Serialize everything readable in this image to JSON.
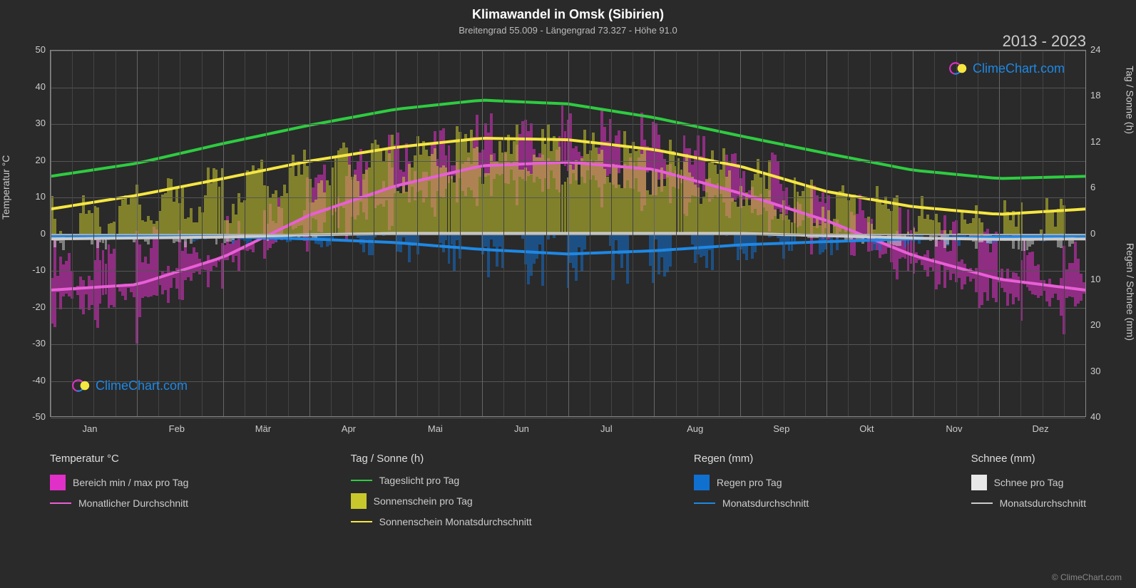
{
  "title": "Klimawandel in Omsk (Sibirien)",
  "subtitle": "Breitengrad 55.009 - Längengrad 73.327 - Höhe 91.0",
  "year_range": "2013 - 2023",
  "watermark_text": "ClimeChart.com",
  "watermark_color": "#1e88e5",
  "copyright": "© ClimeChart.com",
  "background_color": "#2a2a2a",
  "grid_color": "#555555",
  "border_color": "#888888",
  "y_left": {
    "label": "Temperatur °C",
    "min": -50,
    "max": 50,
    "step": 10,
    "ticks": [
      50,
      40,
      30,
      20,
      10,
      0,
      -10,
      -20,
      -30,
      -40,
      -50
    ]
  },
  "y_right_top": {
    "label": "Tag / Sonne (h)",
    "min": 0,
    "max": 24,
    "step": 6,
    "ticks": [
      24,
      18,
      12,
      6,
      0
    ]
  },
  "y_right_bottom": {
    "label": "Regen / Schnee (mm)",
    "min": 0,
    "max": 40,
    "step": 10,
    "ticks": [
      0,
      10,
      20,
      30,
      40
    ]
  },
  "x_axis": {
    "months": [
      "Jan",
      "Feb",
      "Mär",
      "Apr",
      "Mai",
      "Jun",
      "Jul",
      "Aug",
      "Sep",
      "Okt",
      "Nov",
      "Dez"
    ]
  },
  "series_lines": {
    "daylight": {
      "color": "#2ecc40",
      "width": 2,
      "values_h": [
        7.5,
        9.2,
        11.8,
        14.2,
        16.3,
        17.5,
        17.0,
        15.2,
        12.8,
        10.5,
        8.3,
        7.2
      ]
    },
    "sunshine_avg": {
      "color": "#f5e642",
      "width": 2,
      "values_h": [
        3.2,
        5.0,
        7.2,
        9.5,
        11.3,
        12.5,
        12.3,
        11.0,
        8.8,
        5.5,
        3.5,
        2.5
      ]
    },
    "temp_avg": {
      "color": "#e85fd6",
      "width": 2,
      "values_c": [
        -15.5,
        -14.0,
        -6.5,
        5.0,
        13.0,
        18.5,
        19.5,
        17.5,
        11.0,
        3.5,
        -6.0,
        -12.5
      ]
    },
    "rain_avg": {
      "color": "#1e88e5",
      "width": 2,
      "values_mm": [
        0.5,
        0.5,
        0.7,
        1.2,
        2.0,
        3.5,
        4.5,
        3.8,
        2.5,
        1.8,
        1.2,
        0.8
      ]
    },
    "snow_avg": {
      "color": "#cccccc",
      "width": 2,
      "values_mm": [
        1.2,
        1.0,
        0.8,
        0.3,
        0,
        0,
        0,
        0,
        0,
        0.5,
        1.0,
        1.3
      ]
    }
  },
  "daily_bars": {
    "temp_range": {
      "color": "#e030c8",
      "opacity": 0.55
    },
    "sunshine": {
      "color": "#c8c82d",
      "opacity": 0.55
    },
    "rain": {
      "color": "#1070d0",
      "opacity": 0.55
    },
    "snow": {
      "color": "#e8e8e8",
      "opacity": 0.45
    }
  },
  "legend": {
    "cols": [
      {
        "header": "Temperatur °C",
        "items": [
          {
            "type": "box",
            "color": "#e030c8",
            "label": "Bereich min / max pro Tag"
          },
          {
            "type": "line",
            "color": "#e85fd6",
            "label": "Monatlicher Durchschnitt"
          }
        ]
      },
      {
        "header": "Tag / Sonne (h)",
        "items": [
          {
            "type": "line",
            "color": "#2ecc40",
            "label": "Tageslicht pro Tag"
          },
          {
            "type": "box",
            "color": "#c8c82d",
            "label": "Sonnenschein pro Tag"
          },
          {
            "type": "line",
            "color": "#f5e642",
            "label": "Sonnenschein Monatsdurchschnitt"
          }
        ]
      },
      {
        "header": "Regen (mm)",
        "items": [
          {
            "type": "box",
            "color": "#1070d0",
            "label": "Regen pro Tag"
          },
          {
            "type": "line",
            "color": "#1e88e5",
            "label": "Monatsdurchschnitt"
          }
        ]
      },
      {
        "header": "Schnee (mm)",
        "items": [
          {
            "type": "box",
            "color": "#e8e8e8",
            "label": "Schnee pro Tag"
          },
          {
            "type": "line",
            "color": "#cccccc",
            "label": "Monatsdurchschnitt"
          }
        ]
      }
    ]
  }
}
